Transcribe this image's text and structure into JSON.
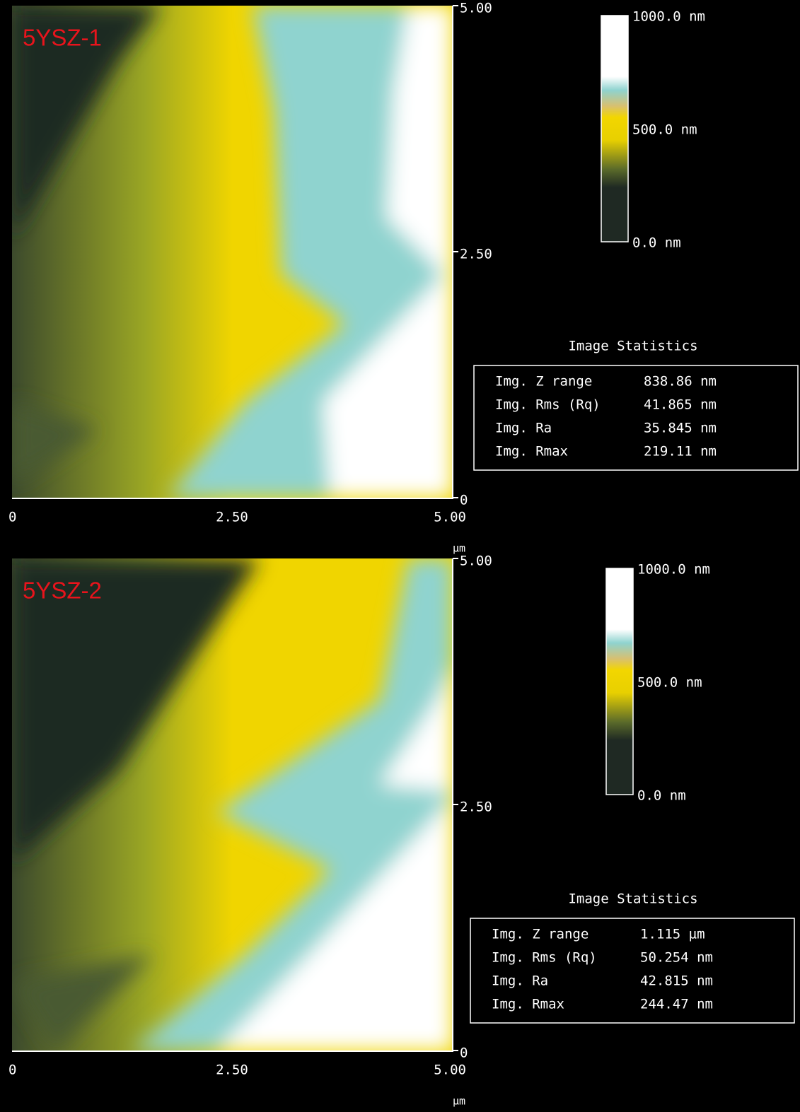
{
  "panels": [
    {
      "label": "5YSZ-1",
      "y_ticks": [
        "5.00",
        "2.50",
        "0"
      ],
      "x_ticks": [
        "0",
        "2.50",
        "5.00"
      ],
      "x_unit": "µm",
      "colorbar_labels": [
        "1000.0 nm",
        "500.0 nm",
        "0.0 nm"
      ],
      "stats_title": "Image Statistics",
      "stats": [
        [
          "Img. Z range",
          "838.86 nm"
        ],
        [
          "Img. Rms (Rq)",
          "41.865 nm"
        ],
        [
          "Img. Ra",
          "35.845 nm"
        ],
        [
          "Img. Rmax",
          "219.11 nm"
        ]
      ]
    },
    {
      "label": "5YSZ-2",
      "y_ticks": [
        "5.00",
        "2.50",
        "0"
      ],
      "x_ticks": [
        "0",
        "2.50",
        "5.00"
      ],
      "x_unit": "µm",
      "colorbar_labels": [
        "1000.0 nm",
        "500.0 nm",
        "0.0 nm"
      ],
      "stats_title": "Image Statistics",
      "stats": [
        [
          "Img. Z range",
          "1.115 µm"
        ],
        [
          "Img. Rms (Rq)",
          "50.254 nm"
        ],
        [
          "Img. Ra",
          "42.815 nm"
        ],
        [
          "Img. Rmax",
          "244.47 nm"
        ]
      ]
    }
  ]
}
